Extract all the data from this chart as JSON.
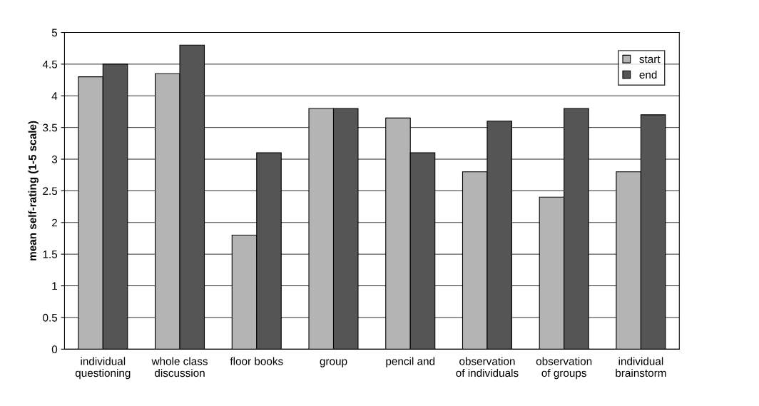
{
  "chart_data": {
    "type": "bar",
    "ylabel": "mean self-rating (1-5 scale)",
    "categories": [
      "individual\nquestioning",
      "whole class\ndiscussion",
      "floor books",
      "group",
      "pencil and",
      "observation\nof individuals",
      "observation\nof groups",
      "individual\nbrainstorm"
    ],
    "series": [
      {
        "name": "start",
        "color": "#b4b4b4",
        "values": [
          4.3,
          4.35,
          1.8,
          3.8,
          3.65,
          2.8,
          2.4,
          2.8
        ]
      },
      {
        "name": "end",
        "color": "#555555",
        "values": [
          4.5,
          4.8,
          3.1,
          3.8,
          3.1,
          3.6,
          3.8,
          3.7
        ]
      }
    ],
    "ylim": [
      0,
      5
    ],
    "yticks": [
      0,
      0.5,
      1,
      1.5,
      2,
      2.5,
      3,
      3.5,
      4,
      4.5,
      5
    ],
    "grid": "y",
    "legend": "top right"
  }
}
